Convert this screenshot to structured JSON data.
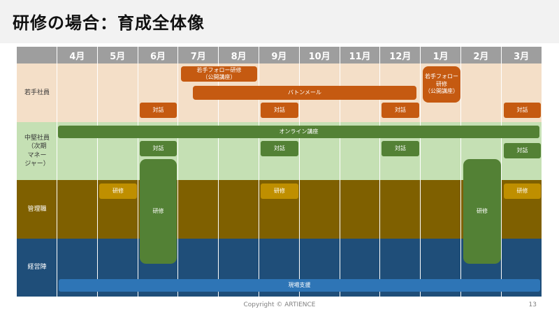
{
  "title": "研修の場合：育成全体像",
  "months": [
    "4月",
    "5月",
    "6月",
    "7月",
    "8月",
    "9月",
    "10月",
    "11月",
    "12月",
    "1月",
    "2月",
    "3月"
  ],
  "rows": [
    {
      "label": "若手社員",
      "color": "#f4dfc8",
      "text_color": "#333333"
    },
    {
      "label": "中堅社員\n（次期\nマネー\nジャー）",
      "color": "#c5e0b4",
      "text_color": "#333333"
    },
    {
      "label": "管理職",
      "color": "#7f6000",
      "text_color": "#ffffff"
    },
    {
      "label": "経営陣",
      "color": "#1f4e79",
      "text_color": "#ffffff"
    }
  ],
  "activities": {
    "wakate_follow_1": "若手フォロー研修\n（公開講座）",
    "baton_mail": "バトンメール",
    "wakate_follow_2": "若手フォロー研修\n（公開講座）",
    "taiwa": "対話",
    "online_koza": "オンライン講座",
    "kenshu": "研修",
    "genba_shien": "現場支援"
  },
  "footer": {
    "copyright": "Copyright © ARTIENCE",
    "page_number": "13"
  }
}
